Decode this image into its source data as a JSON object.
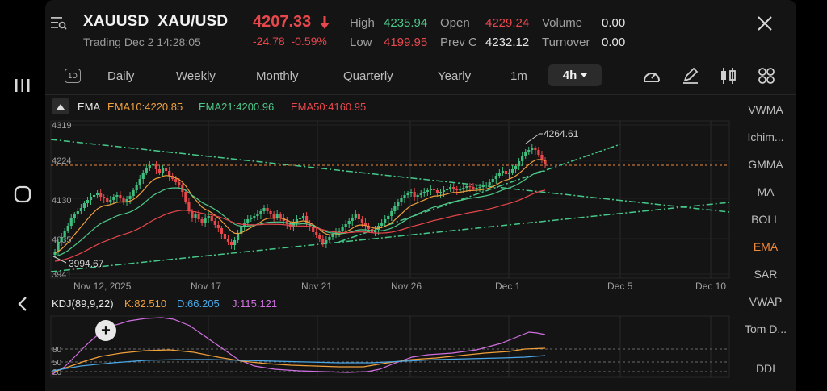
{
  "header": {
    "symbol": "XAUUSD",
    "pair": "XAU/USD",
    "status": "Trading",
    "datetime": "Dec 2 14:28:05",
    "price": "4207.33",
    "change": "-24.78",
    "change_pct": "-0.59%",
    "stats": [
      {
        "label": "High",
        "value": "4235.94",
        "color": "#4fc98a"
      },
      {
        "label": "Low",
        "value": "4199.95",
        "color": "#e8474c"
      },
      {
        "label": "Open",
        "value": "4229.24",
        "color": "#e8474c"
      },
      {
        "label": "Prev C",
        "value": "4232.12",
        "color": "#e6e6e6"
      },
      {
        "label": "Volume",
        "value": "0.00",
        "color": "#e6e6e6"
      },
      {
        "label": "Turnover",
        "value": "0.00",
        "color": "#e6e6e6"
      }
    ]
  },
  "toolbar": {
    "d1_label": "1D",
    "periods": [
      "Daily",
      "Weekly",
      "Monthly",
      "Quarterly",
      "Yearly",
      "1m"
    ],
    "active_period": "4h"
  },
  "indicators": [
    "VWMA",
    "Ichim...",
    "GMMA",
    "MA",
    "BOLL",
    "EMA",
    "SAR",
    "VWAP",
    "Tom D...",
    "DDI"
  ],
  "active_indicator": "EMA",
  "ema_legend": {
    "name": "EMA",
    "ema10": "EMA10:4220.85",
    "ema21": "EMA21:4200.96",
    "ema50": "EMA50:4160.95",
    "colors": {
      "ema10": "#f0a03c",
      "ema21": "#4fc98a",
      "ema50": "#e8474c"
    }
  },
  "kdj_legend": {
    "name": "KDJ(89,9,22)",
    "k": "K:82.510",
    "d": "D:66.205",
    "j": "J:115.121",
    "colors": {
      "k": "#f0a03c",
      "d": "#4aa8e8",
      "j": "#d070e0"
    }
  },
  "chart_data": {
    "type": "candlestick",
    "y_ticks": [
      "4319",
      "4224",
      "4130",
      "4035",
      "3941"
    ],
    "x_ticks": [
      "Nov 12, 2025",
      "Nov 17",
      "Nov 21",
      "Nov 26",
      "Dec 1",
      "Dec 5",
      "Dec 10"
    ],
    "annotations": {
      "high_label": "4264.61",
      "low_label": "3994.67"
    },
    "kdj_ticks": [
      "80",
      "50",
      "20"
    ],
    "colors": {
      "up": "#3fbf7f",
      "down": "#e8474c",
      "trendline": "#45c98a",
      "price_line": "#f08a3c"
    }
  }
}
